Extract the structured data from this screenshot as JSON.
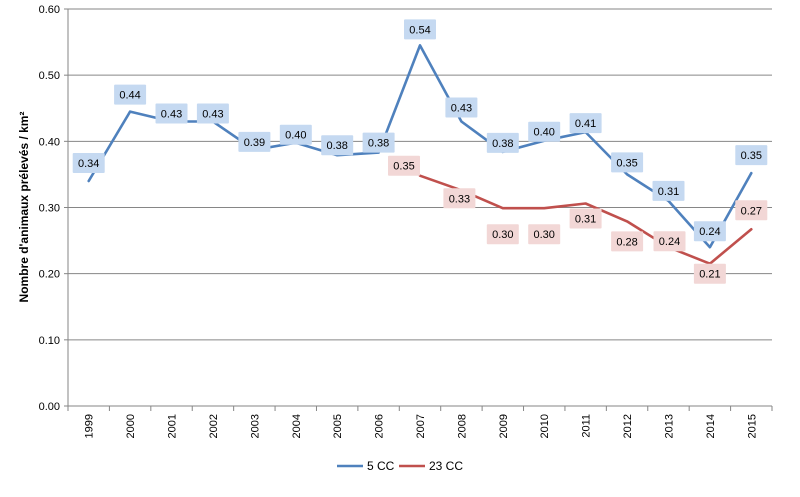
{
  "chart_data": {
    "type": "line",
    "title": "",
    "xlabel": "",
    "ylabel": "Nombre d'animaux prélevés / km²",
    "ylim": [
      0,
      0.6
    ],
    "yticks": [
      "0.00",
      "0.10",
      "0.20",
      "0.30",
      "0.40",
      "0.50",
      "0.60"
    ],
    "categories": [
      "1999",
      "2000",
      "2001",
      "2002",
      "2003",
      "2004",
      "2005",
      "2006",
      "2007",
      "2008",
      "2009",
      "2010",
      "2011",
      "2012",
      "2013",
      "2014",
      "2015"
    ],
    "grid": true,
    "legend_position": "bottom",
    "series": [
      {
        "name": "5 CC",
        "color": "#4f81bd",
        "label_bg": "#c5d9f1",
        "values": [
          0.34,
          0.445,
          0.43,
          0.43,
          0.387,
          0.398,
          0.379,
          0.383,
          0.545,
          0.43,
          0.384,
          0.401,
          0.414,
          0.35,
          0.31,
          0.24,
          0.352
        ],
        "labels": [
          "0.34",
          "0.44",
          "0.43",
          "0.43",
          "0.39",
          "0.40",
          "0.38",
          "0.38",
          "0.54",
          "0.43",
          "0.38",
          "0.40",
          "0.41",
          "0.35",
          "0.31",
          "0.24",
          "0.35"
        ]
      },
      {
        "name": "23 CC",
        "color": "#c0504d",
        "label_bg": "#f2d7d6",
        "values": [
          null,
          null,
          null,
          null,
          null,
          null,
          null,
          null,
          0.348,
          0.326,
          0.299,
          0.299,
          0.306,
          0.279,
          0.24,
          0.215,
          0.267
        ],
        "labels": [
          null,
          null,
          null,
          null,
          null,
          null,
          null,
          null,
          "0.35",
          "0.33",
          "0.30",
          "0.30",
          "0.31",
          "0.28",
          "0.24",
          "0.21",
          "0.27"
        ]
      }
    ]
  }
}
